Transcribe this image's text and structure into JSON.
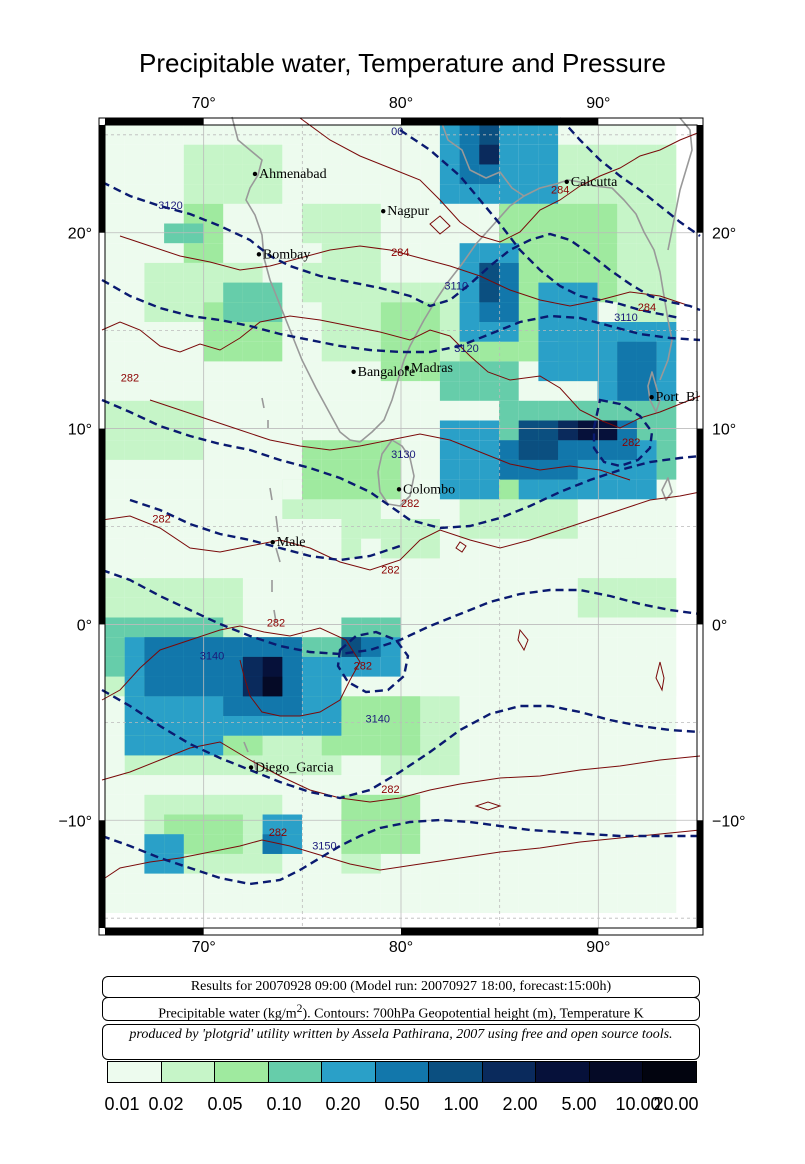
{
  "title": "Precipitable water, Temperature and Pressure",
  "info": {
    "results": "Results for 20070928 09:00 (Model run: 20070927 18:00, forecast:15:00h)",
    "legend_line_a": "Precipitable water (kg/m",
    "legend_sup": "2",
    "legend_line_b": ").  Contours: 700hPa Geopotential height (m), Temperature K",
    "credit": "produced by 'plotgrid' utility written by Assela Pathirana, 2007 using free and open source tools."
  },
  "map": {
    "lon_range": [
      65,
      95
    ],
    "lat_range": [
      -15.5,
      25.5
    ],
    "lon_ticks": [
      70,
      80,
      90
    ],
    "lat_ticks": [
      20,
      10,
      0,
      -10
    ],
    "lon_tick_labels": [
      "70°",
      "80°",
      "90°"
    ],
    "lat_tick_labels": [
      "20°",
      "10°",
      "0°",
      "−10°"
    ],
    "cities": [
      {
        "name": "Ahmenabad",
        "lon": 72.6,
        "lat": 23.0
      },
      {
        "name": "Nagpur",
        "lon": 79.1,
        "lat": 21.1
      },
      {
        "name": "Calcutta",
        "lon": 88.4,
        "lat": 22.6
      },
      {
        "name": "Bombay",
        "lon": 72.8,
        "lat": 18.9
      },
      {
        "name": "Bangalore",
        "lon": 77.6,
        "lat": 12.9
      },
      {
        "name": "Madras",
        "lon": 80.3,
        "lat": 13.1
      },
      {
        "name": "Port_Bl",
        "lon": 92.7,
        "lat": 11.6
      },
      {
        "name": "Colombo",
        "lon": 79.9,
        "lat": 6.9
      },
      {
        "name": "Male",
        "lon": 73.5,
        "lat": 4.2
      },
      {
        "name": "Diego_Garcia",
        "lon": 72.4,
        "lat": -7.3
      }
    ],
    "contour_labels": [
      {
        "text": "3120",
        "lon": 67.7,
        "lat": 21.2,
        "color": "#1a1a7a"
      },
      {
        "text": "3110",
        "lon": 82.2,
        "lat": 17.1,
        "color": "#1a1a7a"
      },
      {
        "text": "3120",
        "lon": 82.7,
        "lat": 13.9,
        "color": "#1a1a7a"
      },
      {
        "text": "3110",
        "lon": 90.8,
        "lat": 15.5,
        "color": "#1a1a7a"
      },
      {
        "text": "3130",
        "lon": 79.5,
        "lat": 8.5,
        "color": "#1a1a7a"
      },
      {
        "text": "3140",
        "lon": 69.8,
        "lat": -1.8,
        "color": "#1a1a7a"
      },
      {
        "text": "3140",
        "lon": 78.2,
        "lat": -5.0,
        "color": "#1a1a7a"
      },
      {
        "text": "3150",
        "lon": 75.5,
        "lat": -11.5,
        "color": "#1a1a7a"
      },
      {
        "text": "284",
        "lon": 79.5,
        "lat": 18.8,
        "color": "#8b0000"
      },
      {
        "text": "284",
        "lon": 87.6,
        "lat": 22.0,
        "color": "#8b0000"
      },
      {
        "text": "284",
        "lon": 92.0,
        "lat": 16.0,
        "color": "#8b0000"
      },
      {
        "text": "282",
        "lon": 65.8,
        "lat": 12.4,
        "color": "#8b0000"
      },
      {
        "text": "282",
        "lon": 91.2,
        "lat": 9.1,
        "color": "#8b0000"
      },
      {
        "text": "282",
        "lon": 80.0,
        "lat": 6.0,
        "color": "#8b0000"
      },
      {
        "text": "282",
        "lon": 67.4,
        "lat": 5.2,
        "color": "#8b0000"
      },
      {
        "text": "282",
        "lon": 79.0,
        "lat": 2.6,
        "color": "#8b0000"
      },
      {
        "text": "282",
        "lon": 73.2,
        "lat": -0.1,
        "color": "#8b0000"
      },
      {
        "text": "282",
        "lon": 77.6,
        "lat": -2.3,
        "color": "#8b0000"
      },
      {
        "text": "282",
        "lon": 79.0,
        "lat": -8.6,
        "color": "#8b0000"
      },
      {
        "text": "282",
        "lon": 73.3,
        "lat": -10.8,
        "color": "#8b0000"
      },
      {
        "text": "00",
        "lon": 79.5,
        "lat": 25.0,
        "color": "#1a1a7a"
      }
    ],
    "coast_color": "#999999",
    "grid_color": "#bbbbbb"
  },
  "colorbar": {
    "labels": [
      "0.01",
      "0.02",
      "0.05",
      "0.10",
      "0.20",
      "0.50",
      "1.00",
      "2.00",
      "5.00",
      "10.00",
      "20.00"
    ],
    "colors": [
      "#edfbee",
      "#c6f5c8",
      "#9fea9f",
      "#66cdaa",
      "#2aa0c8",
      "#1277ab",
      "#0b4f80",
      "#0a2a5c",
      "#06113a",
      "#050a26",
      "#02040f"
    ]
  }
}
